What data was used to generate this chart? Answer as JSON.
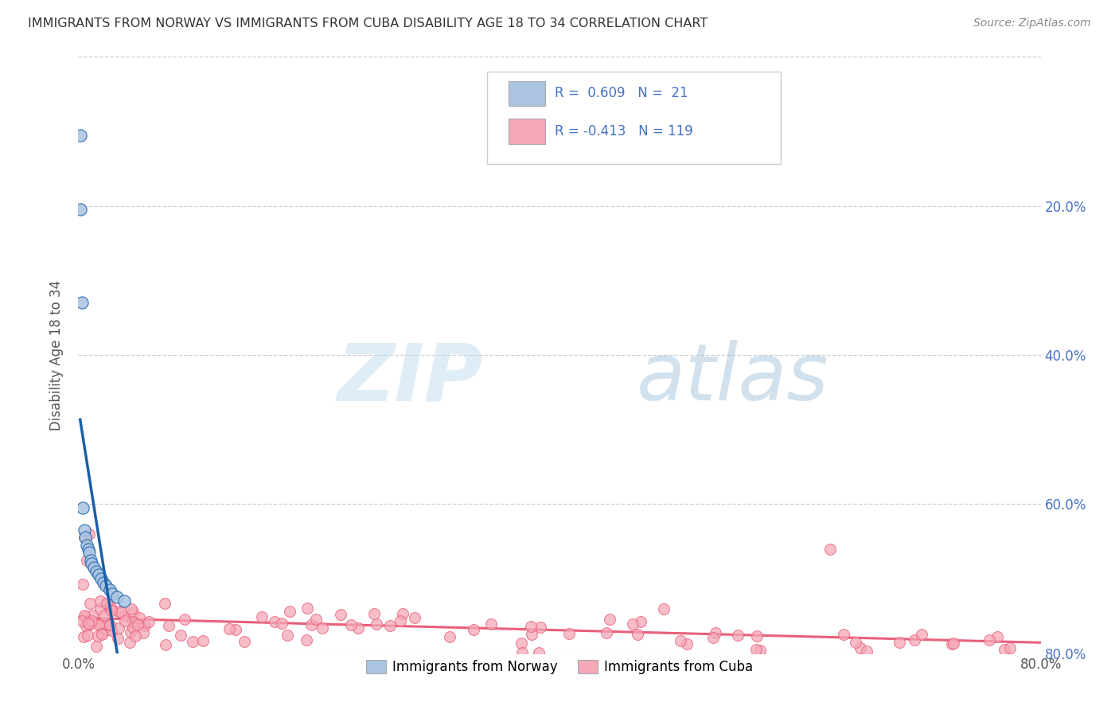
{
  "title": "IMMIGRANTS FROM NORWAY VS IMMIGRANTS FROM CUBA DISABILITY AGE 18 TO 34 CORRELATION CHART",
  "source": "Source: ZipAtlas.com",
  "ylabel": "Disability Age 18 to 34",
  "xlim": [
    0.0,
    0.8
  ],
  "ylim": [
    0.0,
    0.8
  ],
  "xticks": [
    0.0,
    0.2,
    0.4,
    0.6,
    0.8
  ],
  "yticks": [
    0.0,
    0.2,
    0.4,
    0.6,
    0.8
  ],
  "xticklabels": [
    "0.0%",
    "",
    "",
    "",
    "80.0%"
  ],
  "yticklabels_right": [
    "80.0%",
    "60.0%",
    "40.0%",
    "20.0%",
    ""
  ],
  "norway_R": 0.609,
  "norway_N": 21,
  "cuba_R": -0.413,
  "cuba_N": 119,
  "norway_color": "#aac4e2",
  "cuba_color": "#f5a8b8",
  "norway_line_color": "#1a5fa8",
  "cuba_line_color": "#e8607a",
  "background_color": "#ffffff",
  "grid_color": "#cccccc"
}
